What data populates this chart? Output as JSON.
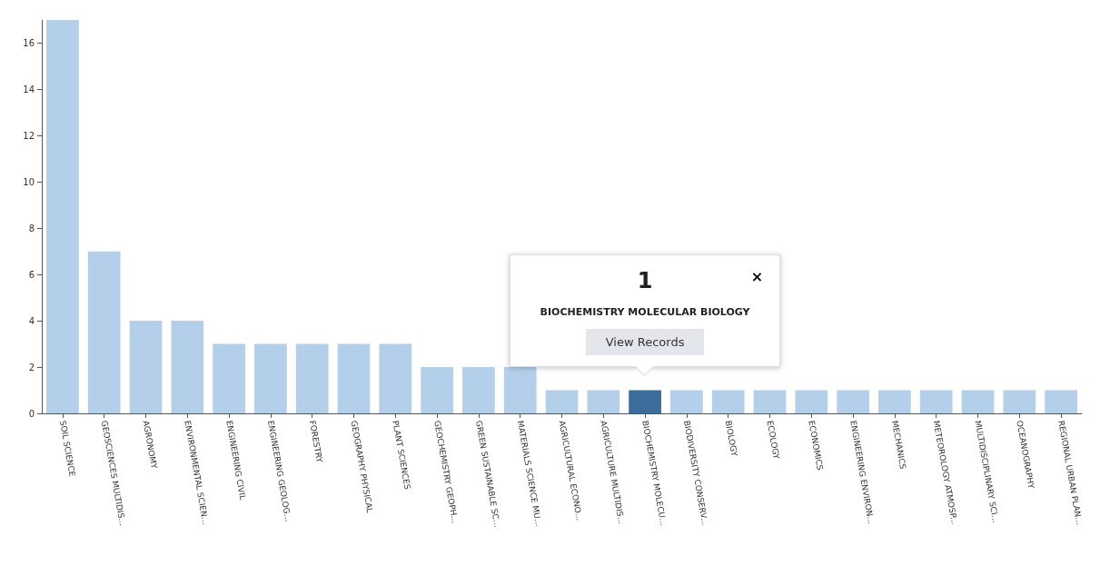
{
  "chart_data": {
    "type": "bar",
    "categories": [
      "SOIL SCIENCE",
      "GEOSCIENCES MULTIDIS...",
      "AGRONOMY",
      "ENVIRONMENTAL SCIEN...",
      "ENGINEERING CIVIL",
      "ENGINEERING GEOLOG...",
      "FORESTRY",
      "GEOGRAPHY PHYSICAL",
      "PLANT SCIENCES",
      "GEOCHEMISTRY GEOPH...",
      "GREEN SUSTAINABLE SC...",
      "MATERIALS SCIENCE MU...",
      "AGRICULTURAL ECONO...",
      "AGRICULTURE MULTIDIS...",
      "BIOCHEMISTRY MOLECU...",
      "BIODIVERSITY CONSERV...",
      "BIOLOGY",
      "ECOLOGY",
      "ECONOMICS",
      "ENGINEERING ENVIRON...",
      "MECHANICS",
      "METEOROLOGY ATMOSP...",
      "MULTIDISCIPLINARY SCI...",
      "OCEANOGRAPHY",
      "REGIONAL URBAN PLAN..."
    ],
    "values": [
      17,
      7,
      4,
      4,
      3,
      3,
      3,
      3,
      3,
      2,
      2,
      2,
      1,
      1,
      1,
      1,
      1,
      1,
      1,
      1,
      1,
      1,
      1,
      1,
      1
    ],
    "colors": [
      "#b3cfe9",
      "#b3cfe9",
      "#b3cfe9",
      "#b3cfe9",
      "#b3cfe9",
      "#b3cfe9",
      "#b3cfe9",
      "#b3cfe9",
      "#b3cfe9",
      "#b3cfe9",
      "#b3cfe9",
      "#b3cfe9",
      "#b3cfe9",
      "#b3cfe9",
      "#3d6d9b",
      "#b3cfe9",
      "#b3cfe9",
      "#b3cfe9",
      "#b3cfe9",
      "#b3cfe9",
      "#b3cfe9",
      "#b3cfe9",
      "#b3cfe9",
      "#b3cfe9",
      "#b3cfe9"
    ],
    "ylim": [
      0,
      17
    ],
    "yticks": [
      0,
      2,
      4,
      6,
      8,
      10,
      12,
      14,
      16
    ],
    "grid": false,
    "annotations": [
      "1",
      "×",
      "BIOCHEMISTRY MOLECULAR BIOLOGY",
      "View Records"
    ]
  }
}
